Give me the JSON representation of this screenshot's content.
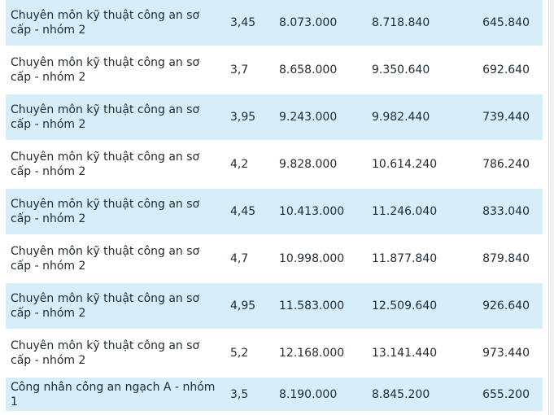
{
  "rows": [
    {
      "name": "Chuyên môn kỹ thuật công an sơ cấp - nhóm 2",
      "coef": "3,45",
      "v1": "8.073.000",
      "v2": "8.718.840",
      "v3": "645.840"
    },
    {
      "name": "Chuyên môn kỹ thuật công an sơ cấp - nhóm 2",
      "coef": "3,7",
      "v1": "8.658.000",
      "v2": "9.350.640",
      "v3": "692.640"
    },
    {
      "name": "Chuyên môn kỹ thuật công an sơ cấp - nhóm 2",
      "coef": "3,95",
      "v1": "9.243.000",
      "v2": "9.982.440",
      "v3": "739.440"
    },
    {
      "name": "Chuyên môn kỹ thuật công an sơ cấp - nhóm 2",
      "coef": "4,2",
      "v1": "9.828.000",
      "v2": "10.614.240",
      "v3": "786.240"
    },
    {
      "name": "Chuyên môn kỹ thuật công an sơ cấp - nhóm 2",
      "coef": "4,45",
      "v1": "10.413.000",
      "v2": "11.246.040",
      "v3": "833.040"
    },
    {
      "name": "Chuyên môn kỹ thuật công an sơ cấp - nhóm 2",
      "coef": "4,7",
      "v1": "10.998.000",
      "v2": "11.877.840",
      "v3": "879.840"
    },
    {
      "name": "Chuyên môn kỹ thuật công an sơ cấp - nhóm 2",
      "coef": "4,95",
      "v1": "11.583.000",
      "v2": "12.509.640",
      "v3": "926.640"
    },
    {
      "name": "Chuyên môn kỹ thuật công an sơ cấp - nhóm 2",
      "coef": "5,2",
      "v1": "12.168.000",
      "v2": "13.141.440",
      "v3": "973.440"
    },
    {
      "name": "Công nhân công an ngạch A - nhóm 1",
      "coef": "3,5",
      "v1": "8.190.000",
      "v2": "8.845.200",
      "v3": "655.200"
    }
  ],
  "colors": {
    "stripe": "#d5eef9",
    "plain": "#ffffff",
    "text": "#1f2a33"
  }
}
